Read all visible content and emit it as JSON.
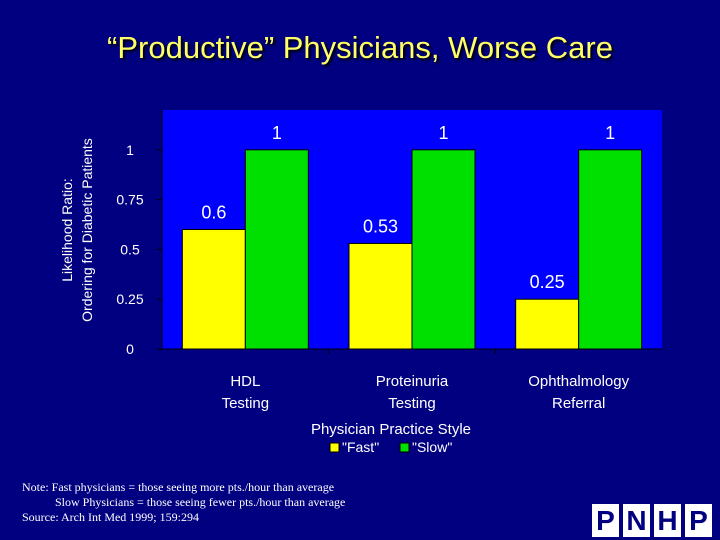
{
  "title": "“Productive” Physicians, Worse Care",
  "chart_data": {
    "type": "bar",
    "categories": [
      [
        "HDL",
        "Testing"
      ],
      [
        "Proteinuria",
        "Testing"
      ],
      [
        "Ophthalmology",
        "Referral"
      ]
    ],
    "series": [
      {
        "name": "\"Fast\"",
        "values": [
          0.6,
          0.53,
          0.25
        ],
        "color": "#ffff00"
      },
      {
        "name": "\"Slow\"",
        "values": [
          1,
          1,
          1
        ],
        "color": "#00e000"
      }
    ],
    "data_labels": [
      [
        "0.6",
        "0.53",
        "0.25"
      ],
      [
        "1",
        "1",
        "1"
      ]
    ],
    "ylabel": [
      "Likelihood Ratio:",
      "Ordering for Diabetic Patients"
    ],
    "xlabel": "Physician Practice Style",
    "yticks": [
      0,
      0.25,
      0.5,
      0.75,
      1
    ],
    "ytick_labels": [
      "0",
      "0.25",
      "0.5",
      "0.75",
      "1"
    ],
    "ylim": [
      0,
      1.2
    ],
    "plot_bg": "#0000ff",
    "legend_position": "bottom"
  },
  "note": {
    "line1": "Note: Fast physicians = those seeing more pts./hour than average",
    "line2": "Slow Physicians = those seeing fewer pts./hour than average",
    "source": "Source: Arch Int Med 1999; 159:294"
  },
  "logo": {
    "letters": [
      "P",
      "N",
      "H",
      "P"
    ]
  }
}
